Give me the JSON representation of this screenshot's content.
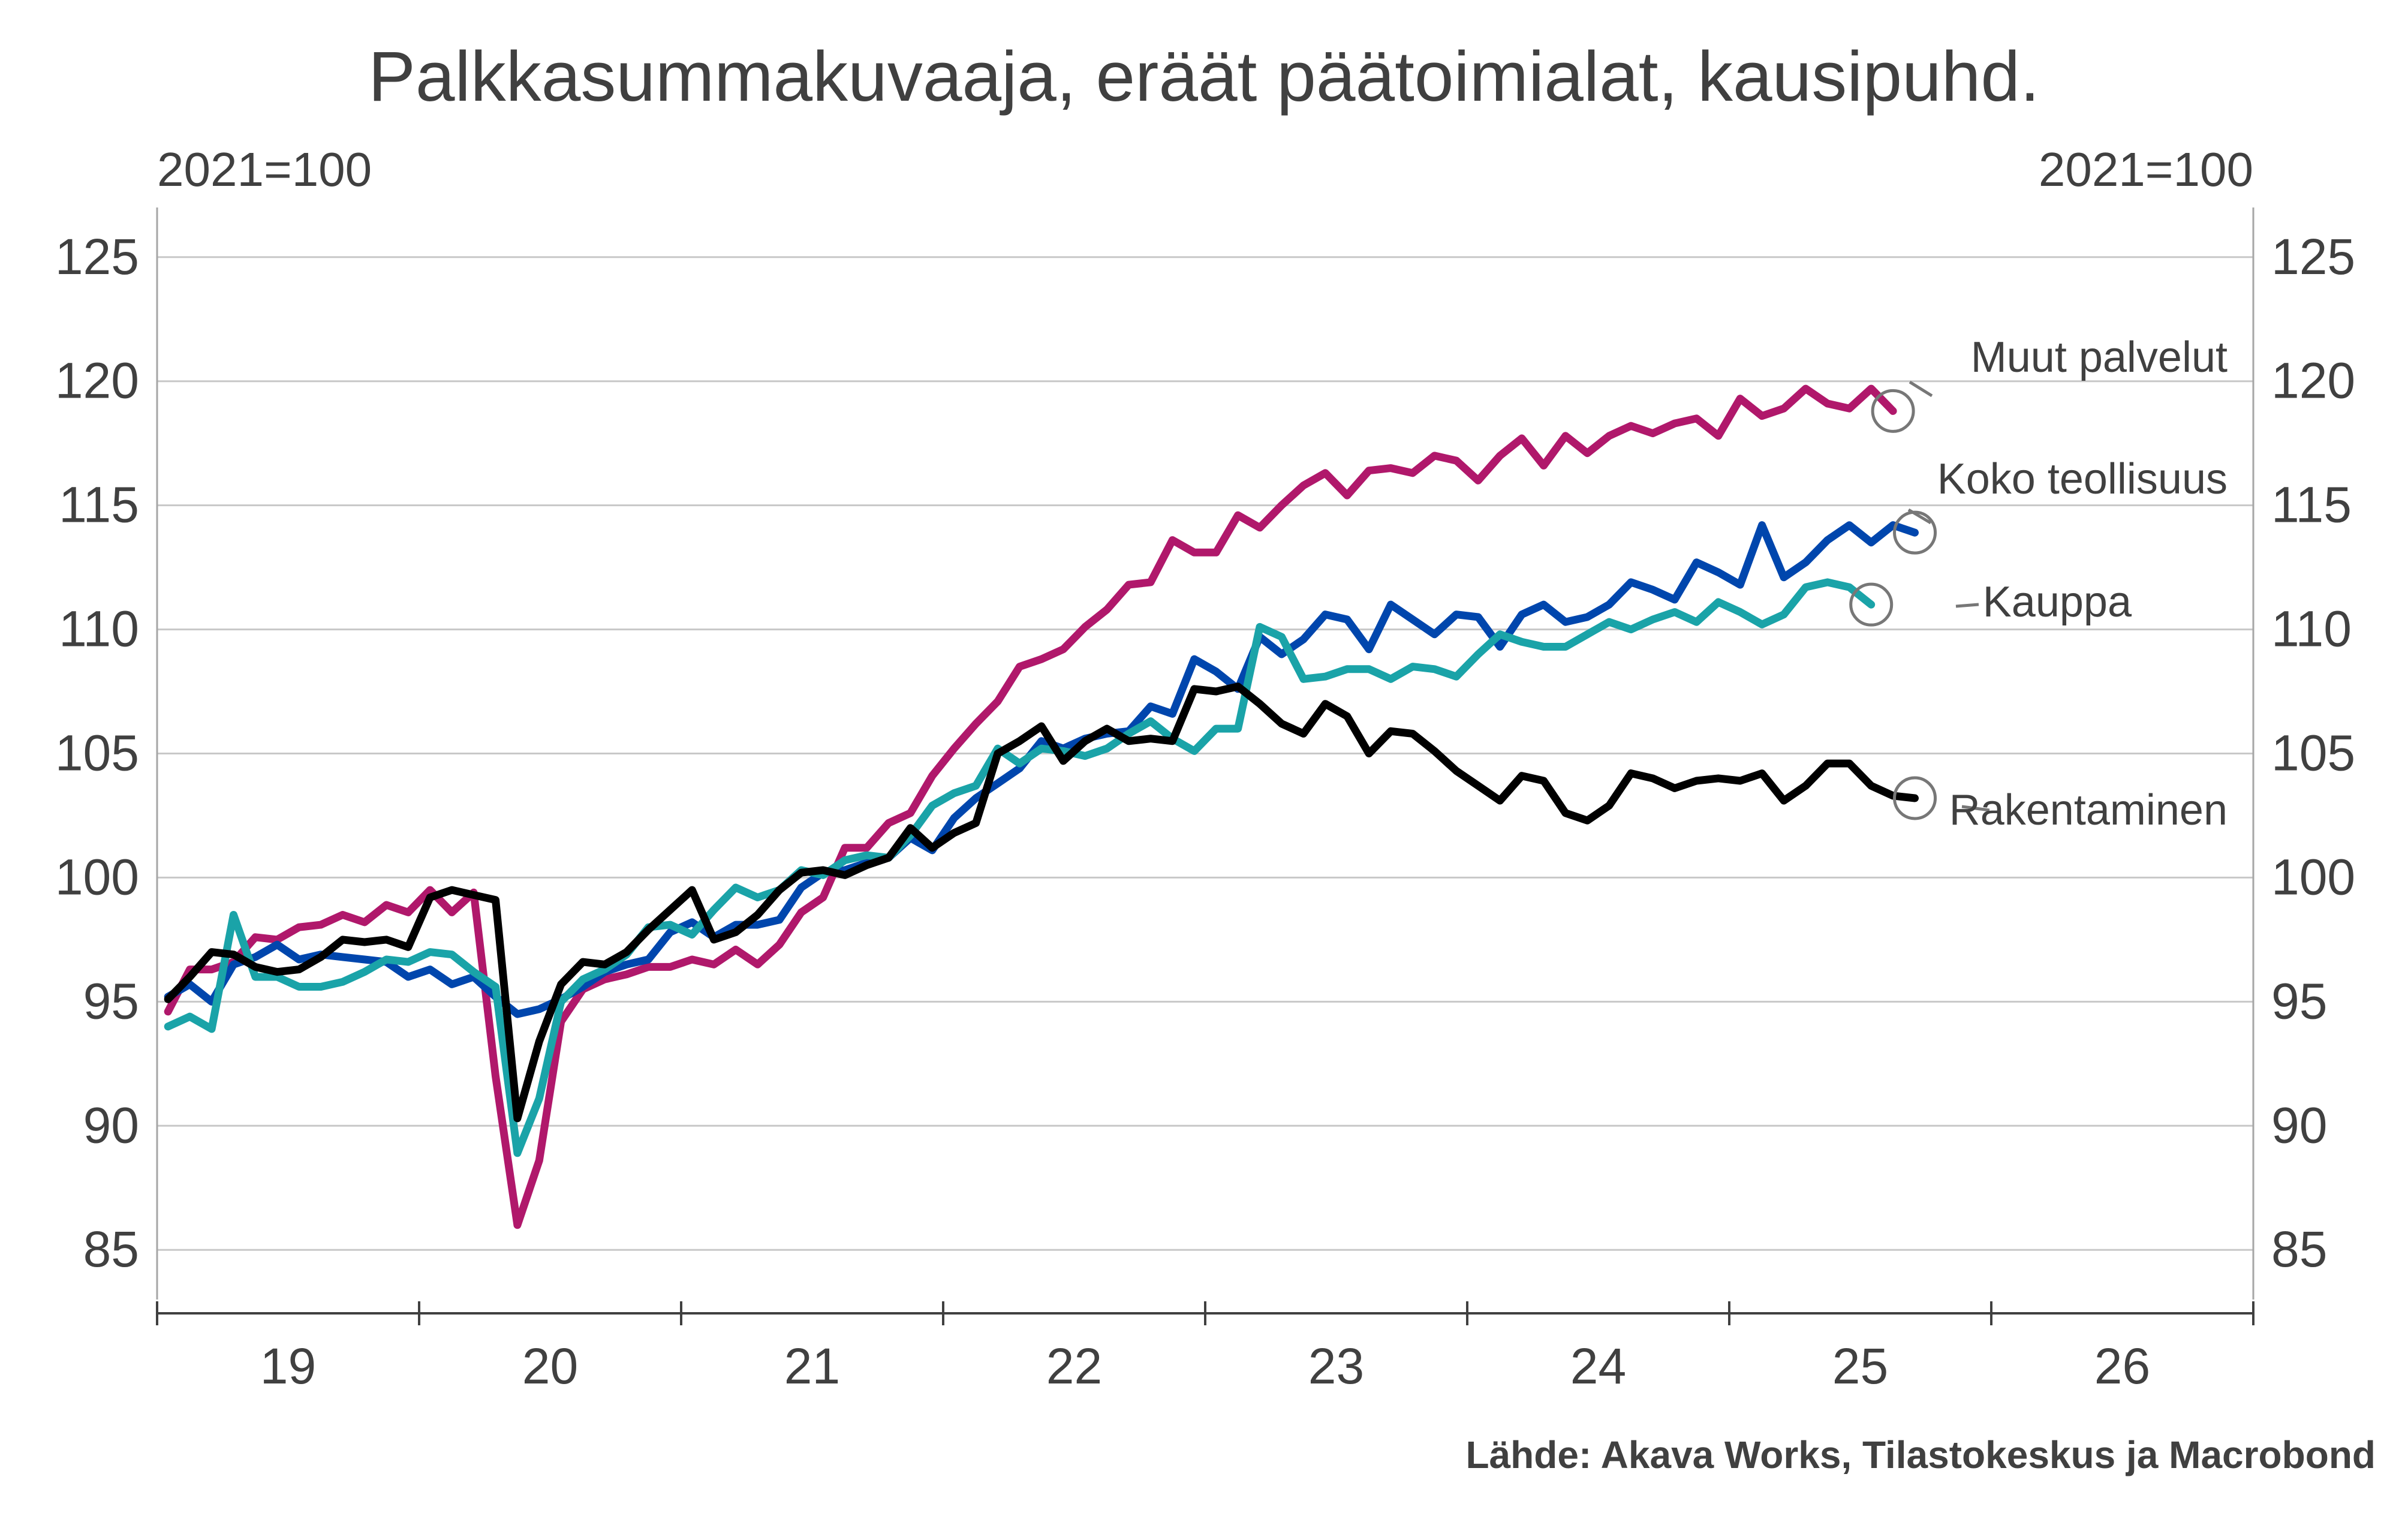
{
  "chart_data": {
    "type": "line",
    "title": "Palkkasummakuvaaja, eräät päätoimialat, kausipuhd.",
    "unit_left": "2021=100",
    "unit_right": "2021=100",
    "source": "Lähde: Akava Works, Tilastokeskus ja Macrobond",
    "ylim": [
      83,
      127
    ],
    "y_ticks": [
      "85",
      "90",
      "95",
      "100",
      "105",
      "110",
      "115",
      "120",
      "125"
    ],
    "x_range": [
      2019,
      2027
    ],
    "x_ticks": [
      "19",
      "20",
      "21",
      "22",
      "23",
      "24",
      "25",
      "26"
    ],
    "grid": true,
    "x_start": "2019-01",
    "series": [
      {
        "name": "Muut palvelut",
        "color": "#b0186b",
        "values": [
          94.6,
          96.3,
          96.3,
          96.6,
          97.6,
          97.5,
          98.0,
          98.1,
          98.5,
          98.2,
          98.9,
          98.6,
          99.5,
          98.6,
          99.4,
          92.0,
          86.0,
          88.6,
          94.2,
          95.5,
          95.9,
          96.1,
          96.4,
          96.4,
          96.7,
          96.5,
          97.1,
          96.5,
          97.3,
          98.6,
          99.2,
          101.2,
          101.2,
          102.2,
          102.6,
          104.1,
          105.2,
          106.2,
          107.1,
          108.5,
          108.8,
          109.2,
          110.1,
          110.8,
          111.8,
          111.9,
          113.6,
          113.1,
          113.1,
          114.6,
          114.1,
          115.0,
          115.8,
          116.3,
          115.4,
          116.4,
          116.5,
          116.3,
          117.0,
          116.8,
          116.0,
          117.0,
          117.7,
          116.6,
          117.8,
          117.1,
          117.8,
          118.2,
          117.9,
          118.3,
          118.5,
          117.8,
          119.3,
          118.6,
          118.9,
          119.7,
          119.1,
          118.9,
          119.7,
          118.8
        ]
      },
      {
        "name": "Koko teollisuus",
        "color": "#0046ad",
        "values": [
          95.2,
          95.7,
          95.0,
          96.5,
          96.8,
          97.3,
          96.7,
          96.9,
          96.8,
          96.7,
          96.6,
          96.0,
          96.3,
          95.7,
          96.0,
          95.2,
          94.5,
          94.7,
          95.1,
          95.6,
          96.2,
          96.5,
          96.7,
          97.8,
          98.2,
          97.6,
          98.1,
          98.1,
          98.3,
          99.6,
          100.2,
          100.3,
          100.6,
          100.8,
          101.6,
          101.1,
          102.4,
          103.2,
          103.8,
          104.4,
          105.5,
          105.2,
          105.6,
          105.8,
          105.9,
          106.9,
          106.6,
          108.8,
          108.3,
          107.6,
          109.7,
          109.0,
          109.6,
          110.6,
          110.4,
          109.2,
          111.0,
          110.4,
          109.8,
          110.6,
          110.5,
          109.3,
          110.6,
          111.0,
          110.3,
          110.5,
          111.0,
          111.9,
          111.6,
          111.2,
          112.7,
          112.3,
          111.8,
          114.2,
          112.1,
          112.7,
          113.6,
          114.2,
          113.5,
          114.2,
          113.9
        ]
      },
      {
        "name": "Kauppa",
        "color": "#1aa3a8",
        "values": [
          94.0,
          94.4,
          93.9,
          98.5,
          96.0,
          96.0,
          95.6,
          95.6,
          95.8,
          96.2,
          96.7,
          96.6,
          97.0,
          96.9,
          96.2,
          95.6,
          88.9,
          91.1,
          95.0,
          95.9,
          96.3,
          96.9,
          98.0,
          98.1,
          97.7,
          98.7,
          99.6,
          99.2,
          99.5,
          100.3,
          100.1,
          100.7,
          100.9,
          100.8,
          101.7,
          102.9,
          103.4,
          103.7,
          105.2,
          104.6,
          105.2,
          105.1,
          104.9,
          105.2,
          105.8,
          106.3,
          105.6,
          105.1,
          106.0,
          106.0,
          110.1,
          109.7,
          108.0,
          108.1,
          108.4,
          108.4,
          108.0,
          108.5,
          108.4,
          108.1,
          109.0,
          109.8,
          109.5,
          109.3,
          109.3,
          109.8,
          110.3,
          110.0,
          110.4,
          110.7,
          110.3,
          111.1,
          110.7,
          110.2,
          110.6,
          111.7,
          111.9,
          111.7,
          111.0
        ]
      },
      {
        "name": "Rakentaminen",
        "color": "#000000",
        "values": [
          95.1,
          96.0,
          97.0,
          96.9,
          96.4,
          96.2,
          96.3,
          96.8,
          97.5,
          97.4,
          97.5,
          97.2,
          99.2,
          99.5,
          99.3,
          99.1,
          90.3,
          93.4,
          95.7,
          96.6,
          96.5,
          97.0,
          97.9,
          98.7,
          99.5,
          97.5,
          97.8,
          98.5,
          99.5,
          100.2,
          100.3,
          100.1,
          100.5,
          100.8,
          102.0,
          101.2,
          101.8,
          102.2,
          105.0,
          105.5,
          106.1,
          104.7,
          105.5,
          106.0,
          105.5,
          105.6,
          105.5,
          107.6,
          107.5,
          107.7,
          107.0,
          106.2,
          105.8,
          107.0,
          106.5,
          105.0,
          105.9,
          105.8,
          105.1,
          104.3,
          103.7,
          103.1,
          104.1,
          103.9,
          102.6,
          102.3,
          102.9,
          104.2,
          104.0,
          103.6,
          103.9,
          104.0,
          103.9,
          104.2,
          103.1,
          103.7,
          104.6,
          104.6,
          103.7,
          103.3,
          103.2
        ]
      }
    ]
  }
}
